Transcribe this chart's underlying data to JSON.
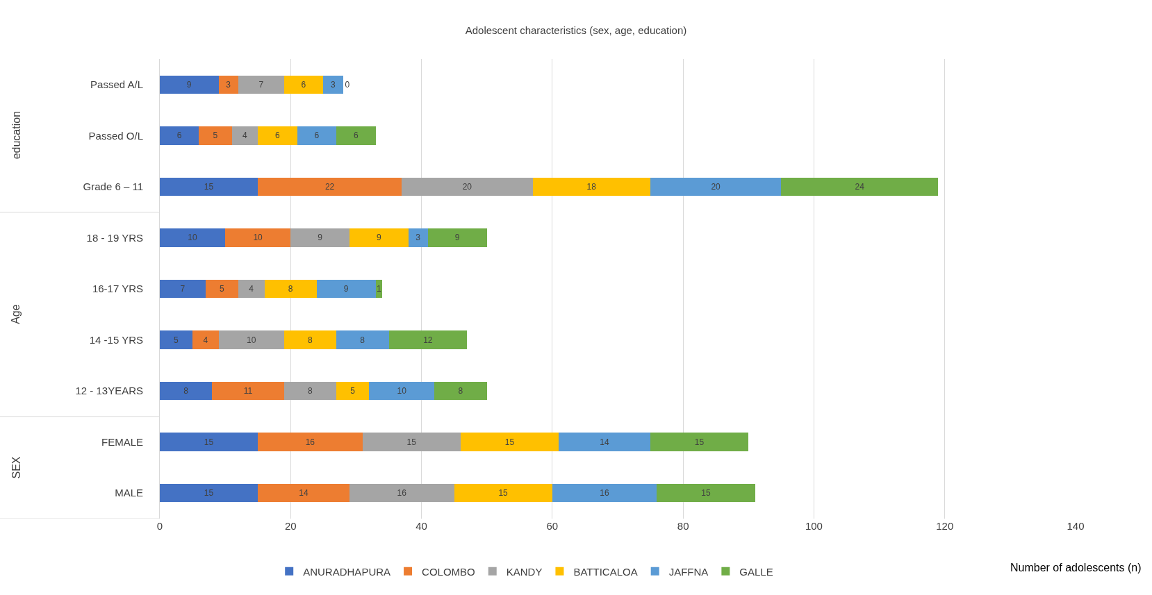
{
  "chart_data": {
    "type": "bar",
    "orientation": "horizontal",
    "stacked": true,
    "title": "Adolescent characteristics (sex, age, education)",
    "xlabel": "Number of adolescents (n)",
    "categories": [
      "Passed A/L",
      "Passed O/L",
      "Grade 6 – 11",
      "18 - 19 YRS",
      "16-17 YRS",
      "14 -15 YRS",
      "12 - 13YEARS",
      "FEMALE",
      "MALE"
    ],
    "series": [
      {
        "name": "ANURADHAPURA",
        "color": "#4472c4",
        "values": [
          9,
          6,
          15,
          10,
          7,
          5,
          8,
          15,
          15
        ]
      },
      {
        "name": "COLOMBO",
        "color": "#ed7d31",
        "values": [
          3,
          5,
          22,
          10,
          5,
          4,
          11,
          16,
          14
        ]
      },
      {
        "name": "KANDY",
        "color": "#a5a5a5",
        "values": [
          7,
          4,
          20,
          9,
          4,
          10,
          8,
          15,
          16
        ]
      },
      {
        "name": "BATTICALOA",
        "color": "#ffc000",
        "values": [
          6,
          6,
          18,
          9,
          8,
          8,
          5,
          15,
          15
        ]
      },
      {
        "name": "JAFFNA",
        "color": "#5b9bd5",
        "values": [
          3,
          6,
          20,
          3,
          9,
          8,
          10,
          14,
          16
        ]
      },
      {
        "name": "GALLE",
        "color": "#70ad47",
        "values": [
          0,
          6,
          24,
          9,
          1,
          12,
          8,
          15,
          15
        ]
      }
    ],
    "annotations": [
      "education",
      "Age",
      "SEX"
    ],
    "xlim": [
      0,
      140
    ],
    "xticks": [
      0,
      20,
      40,
      60,
      80,
      100,
      120,
      140
    ],
    "grid": "x",
    "legend": "bottom",
    "data_labels": true
  }
}
